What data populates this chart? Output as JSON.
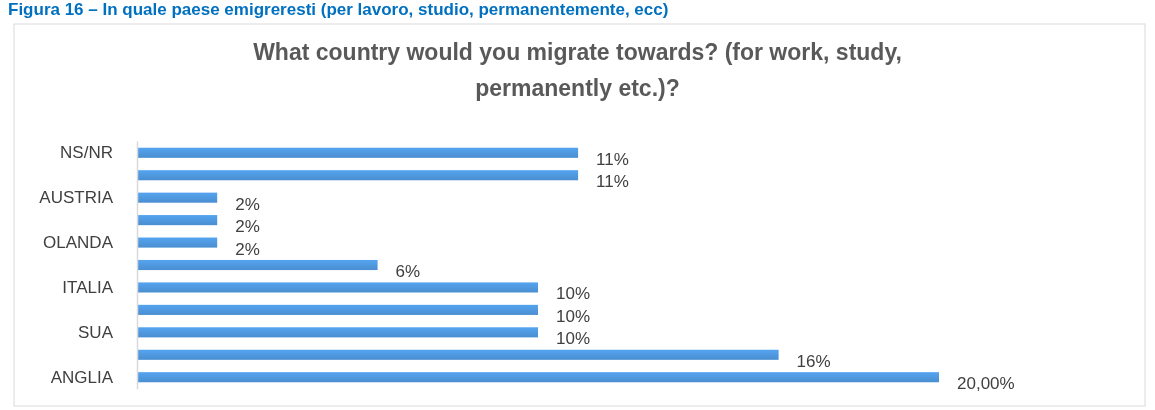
{
  "chart_data": {
    "type": "bar",
    "orientation": "horizontal",
    "title": "What country would you migrate towards? (for work, study, permanently etc.)?",
    "annotations": [
      "Figura 16 – In quale paese emigreresti (per lavoro, studio, permanentemente, ecc)"
    ],
    "categories": [
      "NS/NR",
      null,
      "AUSTRIA",
      null,
      "OLANDA",
      null,
      "ITALIA",
      null,
      "SUA",
      null,
      "ANGLIA"
    ],
    "values": [
      11,
      11,
      2,
      2,
      2,
      6,
      10,
      10,
      10,
      16,
      20
    ],
    "color": "#4a8ed0",
    "value_labels": [
      "11%",
      "11%",
      "2%",
      "2%",
      "2%",
      "6%",
      "10%",
      "10%",
      "10%",
      "16%",
      "20,00%"
    ]
  }
}
